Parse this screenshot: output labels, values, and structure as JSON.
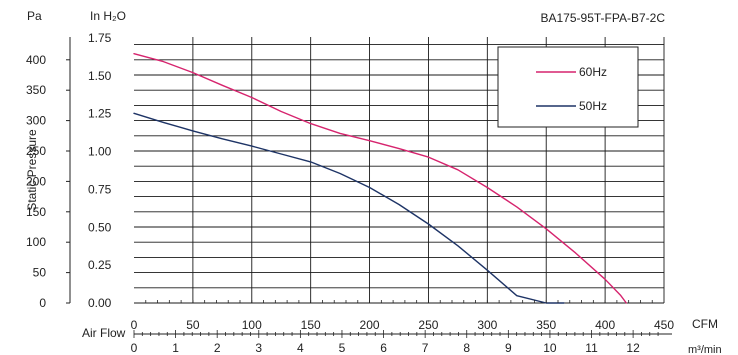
{
  "chart_data": {
    "type": "line",
    "title": "BA175-95T-FPA-B7-2C",
    "ylabel": "Static Pressure",
    "y_units_left": "Pa",
    "y_units_right": "In H₂O",
    "xlabel": "Air Flow",
    "x_units_top": "CFM",
    "x_units_bottom": "m³/min",
    "xlim": [
      0,
      450
    ],
    "ylim": [
      0,
      437.5
    ],
    "grid": true,
    "legend_position": "top-right",
    "x_ticks_cfm": [
      "0",
      "50",
      "100",
      "150",
      "200",
      "250",
      "300",
      "350",
      "400",
      "450"
    ],
    "x_ticks_m3min": [
      "0",
      "1",
      "2",
      "3",
      "4",
      "5",
      "6",
      "7",
      "8",
      "9",
      "10",
      "11",
      "12"
    ],
    "y_ticks_pa": [
      "0",
      "50",
      "100",
      "150",
      "200",
      "250",
      "300",
      "350",
      "400"
    ],
    "y_ticks_inh2o": [
      "0.00",
      "0.25",
      "0.50",
      "0.75",
      "1.00",
      "1.25",
      "1.50",
      "1.75"
    ],
    "series": [
      {
        "name": "60Hz",
        "color": "#d6246e",
        "x": [
          0,
          25,
          50,
          75,
          100,
          125,
          150,
          175,
          200,
          225,
          250,
          275,
          300,
          325,
          350,
          375,
          400,
          413,
          418
        ],
        "y": [
          410,
          397,
          379,
          358,
          338,
          315,
          295,
          279,
          267,
          254,
          240,
          219,
          190,
          158,
          122,
          82,
          39,
          13,
          0
        ]
      },
      {
        "name": "50Hz",
        "color": "#1e3466",
        "x": [
          0,
          25,
          50,
          75,
          100,
          125,
          150,
          175,
          200,
          225,
          250,
          275,
          300,
          325,
          350,
          365
        ],
        "y": [
          312,
          297,
          283,
          270,
          258,
          245,
          232,
          213,
          190,
          162,
          130,
          94,
          54,
          12,
          0,
          0
        ]
      }
    ]
  }
}
